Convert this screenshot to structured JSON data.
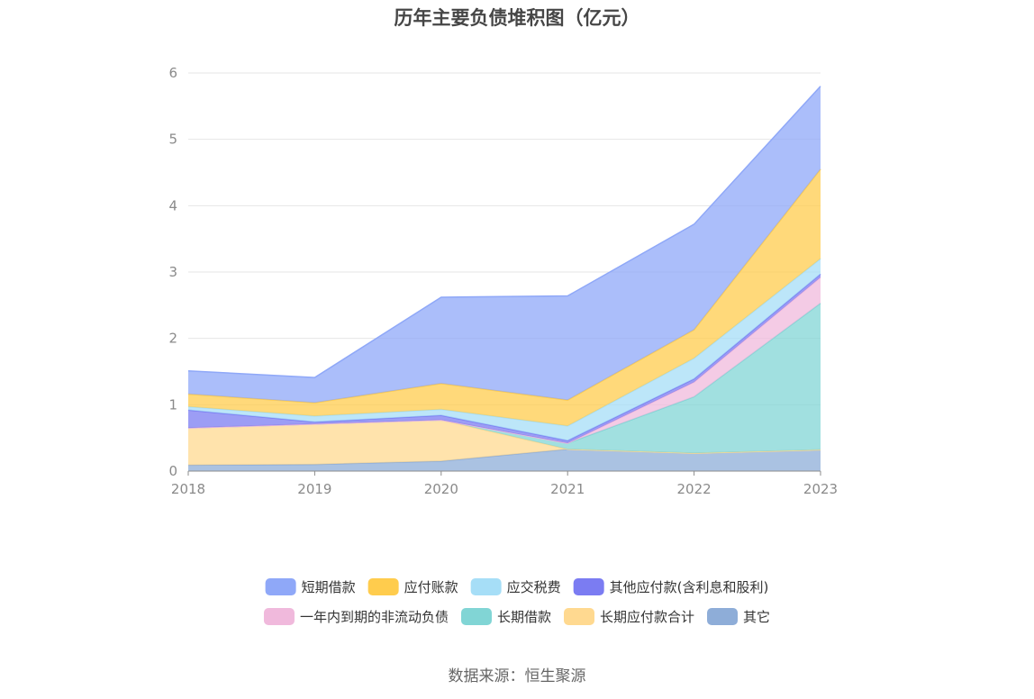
{
  "chart_data": {
    "type": "area",
    "stacked": true,
    "title": "历年主要负债堆积图（亿元）",
    "x": [
      "2018",
      "2019",
      "2020",
      "2021",
      "2022",
      "2023"
    ],
    "ylim": [
      0,
      6
    ],
    "yticks": [
      "0",
      "1",
      "2",
      "3",
      "4",
      "5",
      "6"
    ],
    "grid": true,
    "legend_position": "bottom",
    "series": [
      {
        "name": "其它",
        "color": "#8eadd8",
        "values": [
          0.09,
          0.1,
          0.15,
          0.33,
          0.27,
          0.32
        ]
      },
      {
        "name": "长期应付款合计",
        "color": "#ffd990",
        "values": [
          0.56,
          0.61,
          0.62,
          0.0,
          0.0,
          0.0
        ]
      },
      {
        "name": "长期借款",
        "color": "#81d5d5",
        "values": [
          0.0,
          0.0,
          0.0,
          0.09,
          0.85,
          2.21
        ]
      },
      {
        "name": "一年内到期的非流动负债",
        "color": "#f0b9dc",
        "values": [
          0.0,
          0.0,
          0.0,
          0.0,
          0.22,
          0.39
        ]
      },
      {
        "name": "其他应付款(含利息和股利)",
        "color": "#7b7cf2",
        "values": [
          0.27,
          0.03,
          0.07,
          0.04,
          0.05,
          0.05
        ]
      },
      {
        "name": "应交税费",
        "color": "#a6def7",
        "values": [
          0.05,
          0.09,
          0.09,
          0.22,
          0.31,
          0.23
        ]
      },
      {
        "name": "应付账款",
        "color": "#ffcc4d",
        "values": [
          0.19,
          0.2,
          0.39,
          0.39,
          0.43,
          1.35
        ]
      },
      {
        "name": "短期借款",
        "color": "#8fa8f8",
        "values": [
          0.35,
          0.38,
          1.3,
          1.57,
          1.59,
          1.25
        ]
      }
    ],
    "legend": [
      "短期借款",
      "应付账款",
      "应交税费",
      "其他应付款(含利息和股利)",
      "一年内到期的非流动负债",
      "长期借款",
      "长期应付款合计",
      "其它"
    ]
  },
  "source": "数据来源：恒生聚源"
}
